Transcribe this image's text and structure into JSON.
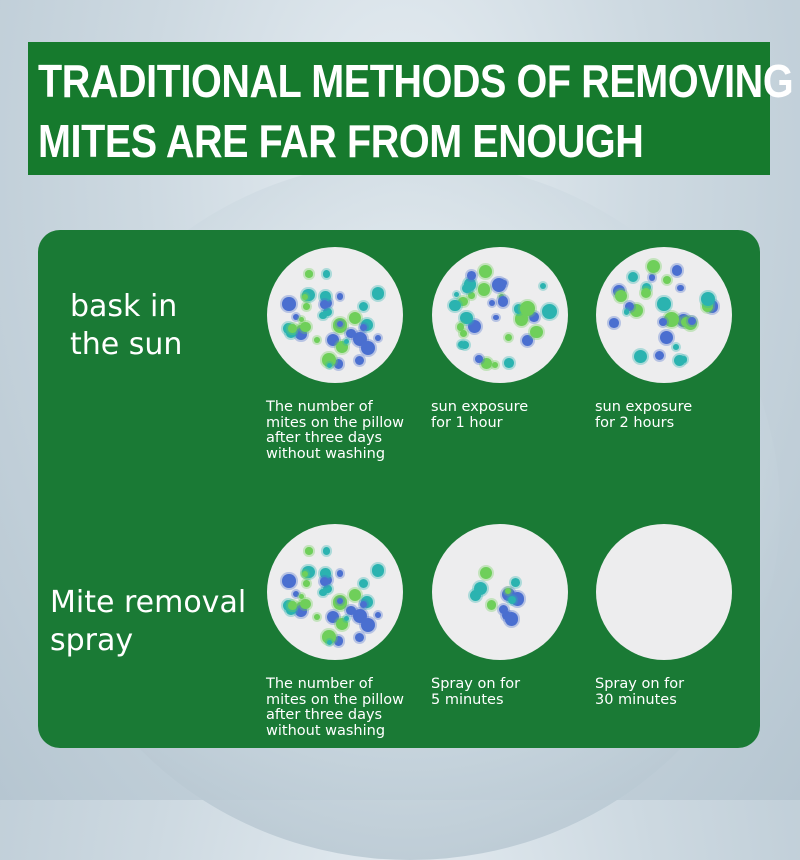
{
  "title": {
    "line1": "TRADITIONAL METHODS OF REMOVING",
    "line2": "MITES ARE FAR FROM ENOUGH"
  },
  "colors": {
    "title_bg": "#167a2d",
    "panel_bg": "#1a7a35",
    "mite_blue": "#4a6fd0",
    "mite_teal": "#2bb3b0",
    "mite_green": "#6fcf5a"
  },
  "rows": [
    {
      "label_line1": "bask in",
      "label_line2": "the sun",
      "items": [
        {
          "caption": [
            "The number of",
            "mites on the pillow",
            "after three days",
            "without washing"
          ],
          "mite_count": 40
        },
        {
          "caption": [
            "sun exposure",
            "for 1 hour"
          ],
          "mite_count": 36
        },
        {
          "caption": [
            "sun exposure",
            "for 2 hours"
          ],
          "mite_count": 30
        }
      ]
    },
    {
      "label_line1": "Mite removal",
      "label_line2": "spray",
      "items": [
        {
          "caption": [
            "The number of",
            "mites on the pillow",
            "after three days",
            "without washing"
          ],
          "mite_count": 40
        },
        {
          "caption": [
            "Spray on for",
            "5 minutes"
          ],
          "mite_count": 12
        },
        {
          "caption": [
            "Spray on for",
            "30 minutes"
          ],
          "mite_count": 0
        }
      ]
    }
  ]
}
